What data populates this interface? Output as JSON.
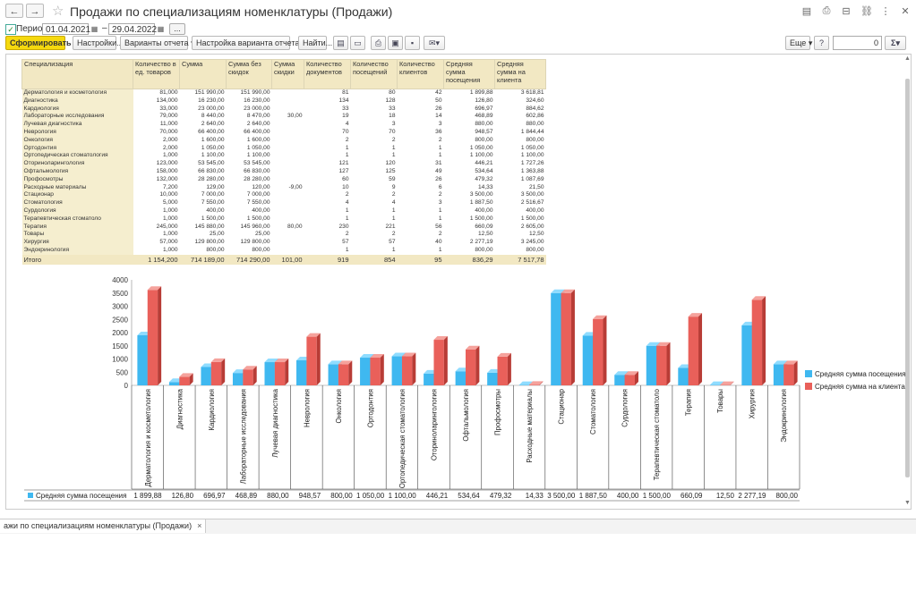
{
  "window": {
    "title": "Продажи по специализациям номенклатуры (Продажи)",
    "back_icon": "←",
    "forward_icon": "→"
  },
  "period": {
    "checked": true,
    "label": "Период:",
    "from": "01.04.2021",
    "separator": "–",
    "to": "29.04.2022",
    "more": "..."
  },
  "toolbar": {
    "generate": "Сформировать",
    "settings": "Настройки...",
    "variants": "Варианты отчета",
    "variant_settings": "Настройка варианта отчета",
    "find": "Найти...",
    "more": "Еще",
    "number_value": "0",
    "sum_symbol": "Σ"
  },
  "table": {
    "headers": [
      "Специализация",
      "Количество в ед. товаров",
      "Сумма",
      "Сумма без скидок",
      "Сумма скидки",
      "Количество документов",
      "Количество посещений",
      "Количество клиентов",
      "Средняя сумма посещения",
      "Средняя сумма на клиента"
    ],
    "rows": [
      [
        "Дерматология и косметология",
        "81,000",
        "151 990,00",
        "151 990,00",
        "",
        "81",
        "80",
        "42",
        "1 899,88",
        "3 618,81"
      ],
      [
        "Диагностика",
        "134,000",
        "16 230,00",
        "16 230,00",
        "",
        "134",
        "128",
        "50",
        "126,80",
        "324,60"
      ],
      [
        "Кардиология",
        "33,000",
        "23 000,00",
        "23 000,00",
        "",
        "33",
        "33",
        "26",
        "696,97",
        "884,62"
      ],
      [
        "Лабораторные исследования",
        "79,000",
        "8 440,00",
        "8 470,00",
        "30,00",
        "19",
        "18",
        "14",
        "468,89",
        "602,86"
      ],
      [
        "Лучевая диагностика",
        "11,000",
        "2 640,00",
        "2 640,00",
        "",
        "4",
        "3",
        "3",
        "880,00",
        "880,00"
      ],
      [
        "Неврология",
        "70,000",
        "66 400,00",
        "66 400,00",
        "",
        "70",
        "70",
        "36",
        "948,57",
        "1 844,44"
      ],
      [
        "Онкология",
        "2,000",
        "1 600,00",
        "1 600,00",
        "",
        "2",
        "2",
        "2",
        "800,00",
        "800,00"
      ],
      [
        "Ортодонтия",
        "2,000",
        "1 050,00",
        "1 050,00",
        "",
        "1",
        "1",
        "1",
        "1 050,00",
        "1 050,00"
      ],
      [
        "Ортопедическая стоматология",
        "1,000",
        "1 100,00",
        "1 100,00",
        "",
        "1",
        "1",
        "1",
        "1 100,00",
        "1 100,00"
      ],
      [
        "Оториноларингология",
        "123,000",
        "53 545,00",
        "53 545,00",
        "",
        "121",
        "120",
        "31",
        "446,21",
        "1 727,26"
      ],
      [
        "Офтальмология",
        "158,000",
        "66 830,00",
        "66 830,00",
        "",
        "127",
        "125",
        "49",
        "534,64",
        "1 363,88"
      ],
      [
        "Профосмотры",
        "132,000",
        "28 280,00",
        "28 280,00",
        "",
        "60",
        "59",
        "26",
        "479,32",
        "1 087,69"
      ],
      [
        "Расходные материалы",
        "7,200",
        "129,00",
        "120,00",
        "-9,00",
        "10",
        "9",
        "6",
        "14,33",
        "21,50"
      ],
      [
        "Стационар",
        "10,000",
        "7 000,00",
        "7 000,00",
        "",
        "2",
        "2",
        "2",
        "3 500,00",
        "3 500,00"
      ],
      [
        "Стоматология",
        "5,000",
        "7 550,00",
        "7 550,00",
        "",
        "4",
        "4",
        "3",
        "1 887,50",
        "2 516,67"
      ],
      [
        "Сурдология",
        "1,000",
        "400,00",
        "400,00",
        "",
        "1",
        "1",
        "1",
        "400,00",
        "400,00"
      ],
      [
        "Терапевтическая стоматоло",
        "1,000",
        "1 500,00",
        "1 500,00",
        "",
        "1",
        "1",
        "1",
        "1 500,00",
        "1 500,00"
      ],
      [
        "Терапия",
        "245,000",
        "145 880,00",
        "145 960,00",
        "80,00",
        "230",
        "221",
        "56",
        "660,09",
        "2 605,00"
      ],
      [
        "Товары",
        "1,000",
        "25,00",
        "25,00",
        "",
        "2",
        "2",
        "2",
        "12,50",
        "12,50"
      ],
      [
        "Хирургия",
        "57,000",
        "129 800,00",
        "129 800,00",
        "",
        "57",
        "57",
        "40",
        "2 277,19",
        "3 245,00"
      ],
      [
        "Эндокринология",
        "1,000",
        "800,00",
        "800,00",
        "",
        "1",
        "1",
        "1",
        "800,00",
        "800,00"
      ]
    ],
    "total": [
      "Итого",
      "1 154,200",
      "714 189,00",
      "714 290,00",
      "101,00",
      "919",
      "854",
      "95",
      "836,29",
      "7 517,78"
    ]
  },
  "chart_data": {
    "type": "bar",
    "categories": [
      "Дерматология и косметология",
      "Диагностика",
      "Кардиология",
      "Лабораторные исследования",
      "Лучевая диагностика",
      "Неврология",
      "Онкология",
      "Ортодонтия",
      "Ортопедическая стоматология",
      "Оториноларингология",
      "Офтальмология",
      "Профосмотры",
      "Расходные материалы",
      "Стационар",
      "Стоматология",
      "Сурдология",
      "Терапевтическая стоматоло",
      "Терапия",
      "Товары",
      "Хирургия",
      "Эндокринология"
    ],
    "series": [
      {
        "name": "Средняя сумма посещения",
        "color": "#3fb8f0",
        "values": [
          1899.88,
          126.8,
          696.97,
          468.89,
          880.0,
          948.57,
          800.0,
          1050.0,
          1100.0,
          446.21,
          534.64,
          479.32,
          14.33,
          3500.0,
          1887.5,
          400.0,
          1500.0,
          660.09,
          12.5,
          2277.19,
          800.0
        ]
      },
      {
        "name": "Средняя сумма на клиента",
        "color": "#e9605a",
        "values": [
          3618.81,
          324.6,
          884.62,
          602.86,
          880.0,
          1844.44,
          800.0,
          1050.0,
          1100.0,
          1727.26,
          1363.88,
          1087.69,
          21.5,
          3500.0,
          2516.67,
          400.0,
          1500.0,
          2605.0,
          12.5,
          3245.0,
          800.0
        ]
      }
    ],
    "y_ticks": [
      "0",
      "500",
      "1000",
      "1500",
      "2000",
      "2500",
      "3000",
      "3500",
      "4000"
    ],
    "ylim": [
      0,
      4000
    ],
    "legend_position": "right",
    "data_table_row_label": "Средняя сумма посещения",
    "data_table_values": [
      "1 899,88",
      "126,80",
      "696,97",
      "468,89",
      "880,00",
      "948,57",
      "800,00",
      "1 050,00",
      "1 100,00",
      "446,21",
      "534,64",
      "479,32",
      "14,33",
      "3 500,00",
      "1 887,50",
      "400,00",
      "1 500,00",
      "660,09",
      "12,50",
      "2 277,19",
      "800,00"
    ]
  },
  "tabs": {
    "active_label": "ажи по специализациям номенклатуры (Продажи)",
    "close": "×"
  }
}
